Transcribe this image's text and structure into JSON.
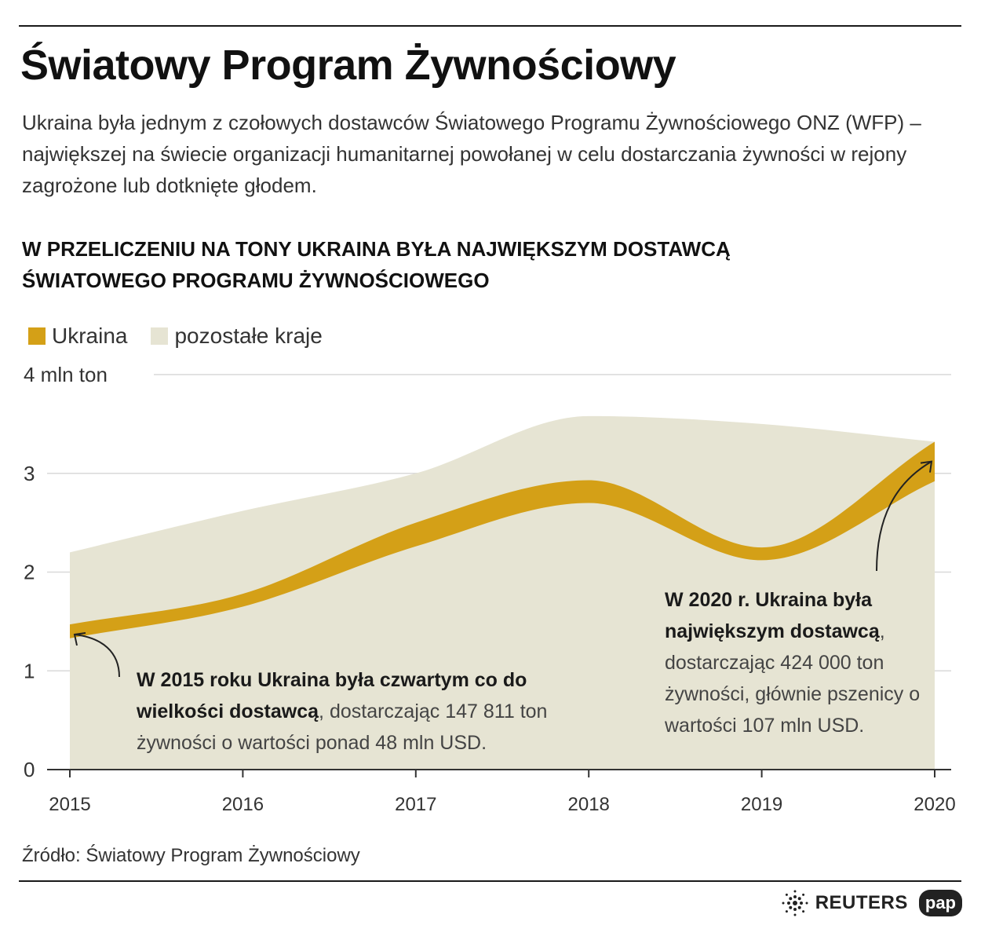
{
  "header": {
    "title": "Światowy Program Żywnościowy",
    "intro": "Ukraina była jednym z czołowych dostawców Światowego Programu Żywnościowego ONZ (WFP) – największej na świecie organizacji humanitarnej powołanej w celu dostarczania żywności w rejony zagrożone lub dotknięte głodem.",
    "subtitle_line1": "W PRZELICZENIU NA TONY UKRAINA BYŁA NAJWIĘKSZYM DOSTAWCĄ",
    "subtitle_line2": "ŚWIATOWEGO PROGRAMU ŻYWNOŚCIOWEGO"
  },
  "legend": [
    {
      "label": "Ukraina",
      "color": "#d4a017"
    },
    {
      "label": "pozostałe kraje",
      "color": "#e6e4d3"
    }
  ],
  "chart_data": {
    "type": "area",
    "x": [
      2015,
      2016,
      2017,
      2018,
      2019,
      2020
    ],
    "x_tick_labels": [
      "2015",
      "2016",
      "2017",
      "2018",
      "2019",
      "2020"
    ],
    "y_tick_labels": [
      "0",
      "1",
      "2",
      "3",
      "4 mln ton"
    ],
    "y_ticks": [
      0,
      1,
      2,
      3,
      4
    ],
    "ylim": [
      0,
      4
    ],
    "ylabel": "mln ton",
    "series": [
      {
        "name": "pozostałe kraje",
        "kind": "total",
        "values": [
          2.2,
          2.62,
          3.0,
          3.58,
          3.5,
          3.32
        ],
        "color": "#e6e4d3"
      },
      {
        "name": "Ukraina",
        "kind": "band",
        "lower": [
          1.33,
          1.65,
          2.26,
          2.7,
          2.12,
          2.92
        ],
        "upper": [
          1.47,
          1.78,
          2.5,
          2.93,
          2.25,
          3.32
        ],
        "color": "#d4a017"
      }
    ],
    "annotations": [
      {
        "bold": "W 2015 roku Ukraina była czwartym co do wielkości dostawcą",
        "text": ", dostarczając 147 811 ton żywności o wartości ponad 48 mln USD."
      },
      {
        "bold": "W 2020 r. Ukraina była największym dostawcą",
        "text": ", dostarczając 424 000 ton żywności, głównie pszenicy o wartości 107 mln USD."
      }
    ]
  },
  "footer": {
    "source": "Źródło: Światowy Program Żywnościowy",
    "reuters": "REUTERS",
    "pap": "pap"
  }
}
